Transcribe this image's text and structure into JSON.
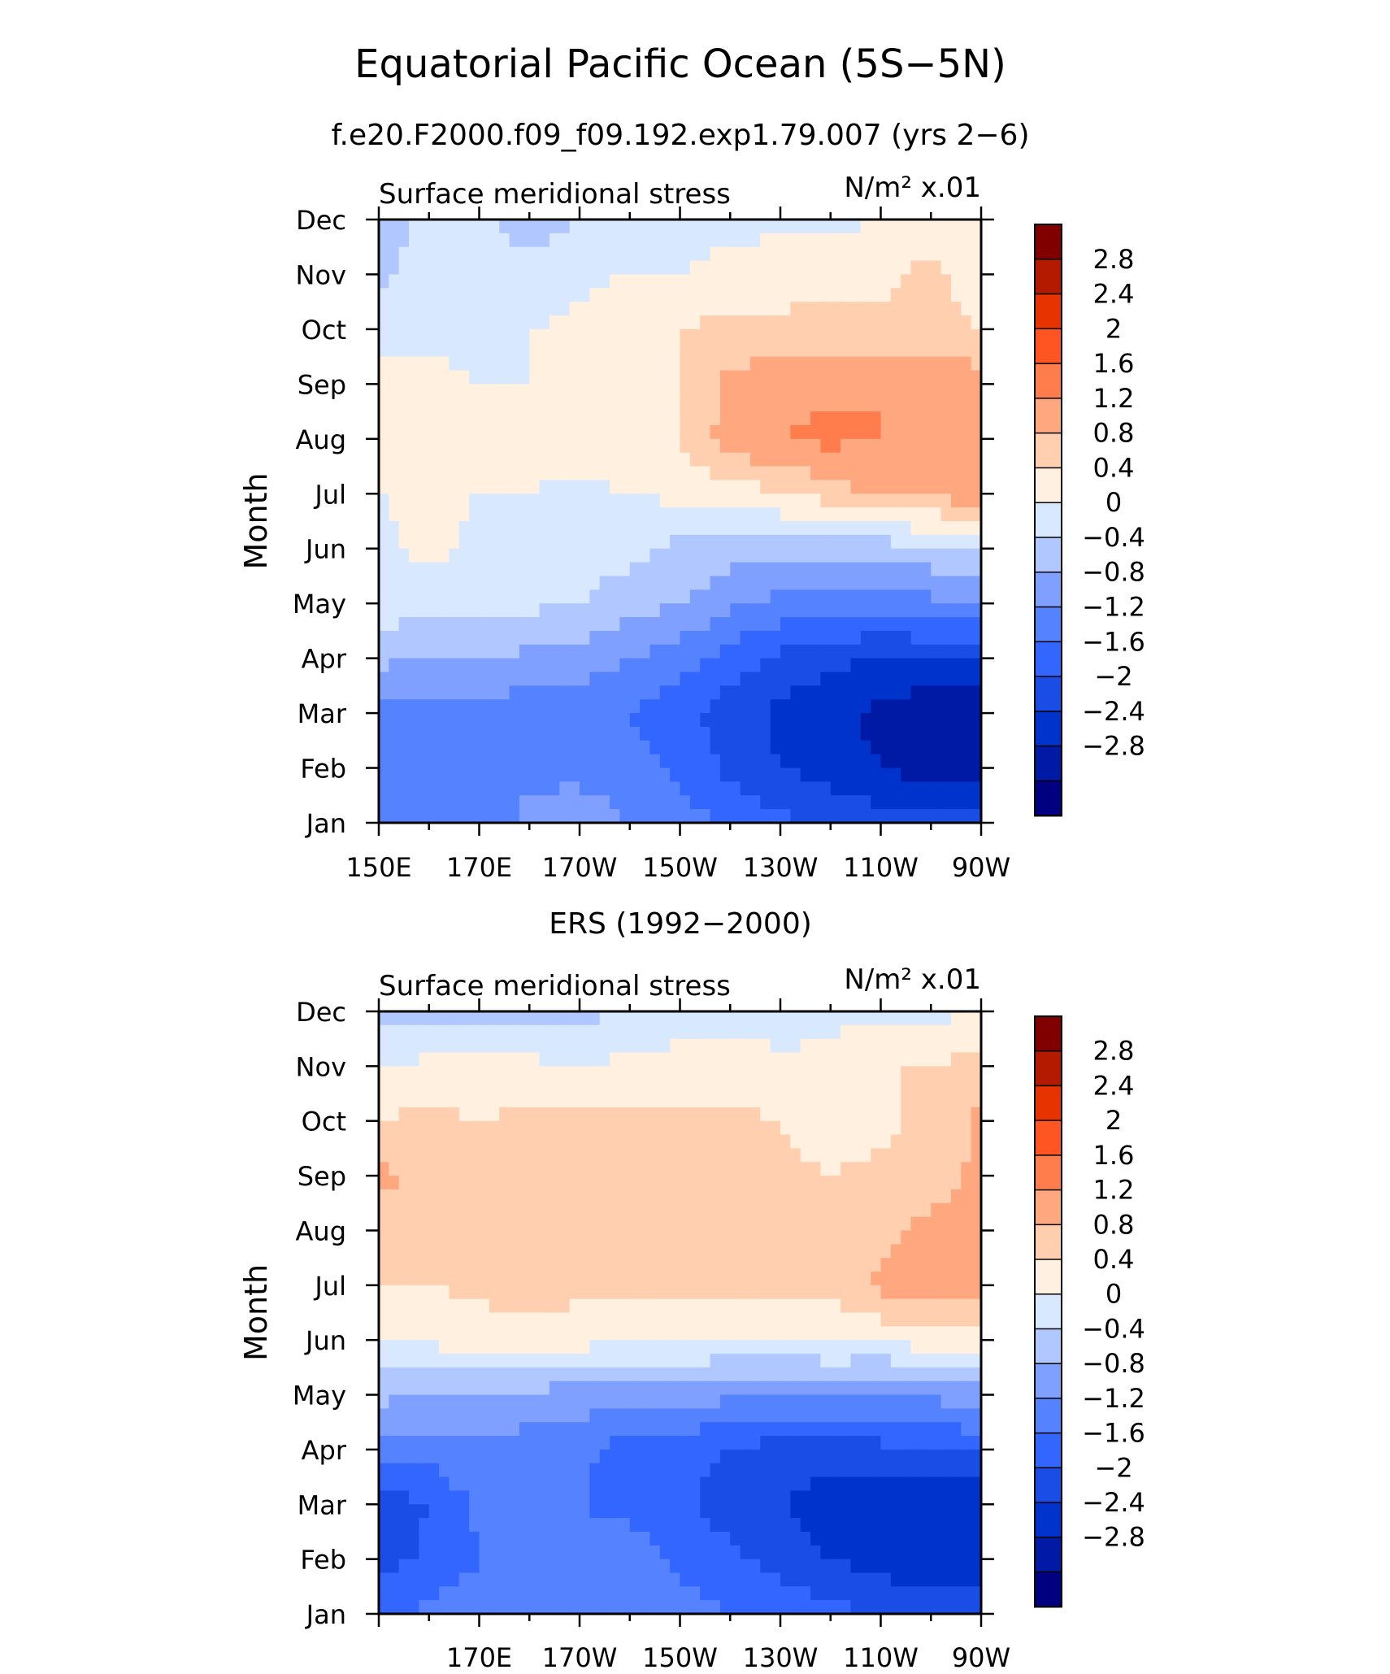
{
  "figure": {
    "title": "Equatorial Pacific Ocean (5S−5N)",
    "subtitle": "f.e20.F2000.f09_f09.192.exp1.79.007 (yrs 2−6)",
    "middle_title": "ERS (1992−2000)"
  },
  "colors": {
    "contour_fills": [
      "#000080",
      "#001aa6",
      "#0033cc",
      "#1a4de6",
      "#3366ff",
      "#5582ff",
      "#80a0ff",
      "#b0c8ff",
      "#d8e8ff",
      "#fff0e0",
      "#ffcfb0",
      "#ffa880",
      "#ff7d4d",
      "#ff5522",
      "#e63300",
      "#b31a00",
      "#800000"
    ]
  },
  "chart_data": [
    {
      "type": "heatmap",
      "name": "model",
      "title": "Surface meridional stress",
      "units": "N/m² x.01",
      "ylabel": "Month",
      "xlabel": "",
      "x_tick_labels": [
        "150E",
        "170E",
        "170W",
        "150W",
        "130W",
        "110W",
        "90W"
      ],
      "y_tick_labels": [
        "Jan",
        "Feb",
        "Mar",
        "Apr",
        "May",
        "Jun",
        "Jul",
        "Aug",
        "Sep",
        "Oct",
        "Nov",
        "Dec"
      ],
      "xlim": [
        150,
        270
      ],
      "ylim": [
        1,
        12
      ],
      "colorbar_levels": [
        -2.8,
        -2.4,
        -2,
        -1.6,
        -1.2,
        -0.8,
        -0.4,
        0,
        0.4,
        0.8,
        1.2,
        1.6,
        2,
        2.4,
        2.8
      ],
      "colorbar_labels": [
        "2.8",
        "2.4",
        "2",
        "1.6",
        "1.2",
        "0.8",
        "0.4",
        "0",
        "−0.4",
        "−0.8",
        "−1.2",
        "−1.6",
        "−2",
        "−2.4",
        "−2.8"
      ],
      "grid_lon": [
        150,
        160,
        170,
        180,
        190,
        200,
        210,
        220,
        230,
        240,
        250,
        260,
        270
      ],
      "values": [
        [
          -0.9,
          -1.0,
          -1.0,
          -0.7,
          -0.6,
          -0.8,
          -1.0,
          -1.3,
          -1.5,
          -1.7,
          -1.8,
          -1.8,
          -1.7
        ],
        [
          -1.1,
          -1.1,
          -1.0,
          -0.9,
          -0.9,
          -1.0,
          -1.3,
          -1.7,
          -2.0,
          -2.2,
          -2.4,
          -2.6,
          -2.7
        ],
        [
          -1.0,
          -1.0,
          -1.0,
          -1.0,
          -1.0,
          -1.2,
          -1.5,
          -1.8,
          -2.1,
          -2.3,
          -2.5,
          -2.7,
          -2.8
        ],
        [
          -0.3,
          -0.4,
          -0.4,
          -0.5,
          -0.6,
          -0.8,
          -1.0,
          -1.4,
          -1.7,
          -1.9,
          -2.0,
          -2.0,
          -1.9
        ],
        [
          0.2,
          0.2,
          0.1,
          0.1,
          0.0,
          -0.2,
          -0.4,
          -0.7,
          -0.9,
          -1.0,
          -1.0,
          -0.9,
          -0.8
        ],
        [
          0.3,
          0.5,
          0.3,
          0.2,
          0.2,
          0.1,
          -0.1,
          -0.2,
          -0.3,
          -0.3,
          -0.2,
          -0.1,
          0.0
        ],
        [
          0.4,
          0.5,
          0.4,
          0.4,
          0.3,
          0.4,
          0.5,
          0.6,
          0.8,
          1.0,
          1.3,
          1.3,
          1.5
        ],
        [
          0.8,
          0.5,
          0.5,
          0.5,
          0.6,
          0.7,
          0.8,
          1.4,
          1.6,
          1.7,
          1.6,
          1.6,
          1.4
        ],
        [
          0.5,
          0.5,
          0.4,
          0.4,
          0.5,
          0.7,
          0.8,
          1.3,
          1.5,
          1.5,
          1.6,
          1.5,
          1.4
        ],
        [
          0.3,
          0.3,
          0.3,
          0.4,
          0.5,
          0.7,
          0.8,
          0.9,
          0.9,
          1.0,
          0.9,
          0.9,
          0.8
        ],
        [
          -0.1,
          0.2,
          0.2,
          0.1,
          0.3,
          0.4,
          0.4,
          0.5,
          0.6,
          0.6,
          0.7,
          0.9,
          0.6
        ],
        [
          -0.2,
          0.1,
          0.1,
          -0.2,
          0.0,
          0.1,
          0.3,
          0.3,
          0.3,
          0.3,
          0.4,
          0.6,
          0.5
        ]
      ]
    },
    {
      "type": "heatmap",
      "name": "ERS",
      "title": "Surface meridional stress",
      "units": "N/m² x.01",
      "ylabel": "Month",
      "xlabel": "",
      "x_tick_labels": [
        "170E",
        "170W",
        "150W",
        "130W",
        "110W",
        "90W"
      ],
      "y_tick_labels": [
        "Jan",
        "Feb",
        "Mar",
        "Apr",
        "May",
        "Jun",
        "Jul",
        "Aug",
        "Sep",
        "Oct",
        "Nov",
        "Dec"
      ],
      "xlim": [
        150,
        270
      ],
      "ylim": [
        1,
        12
      ],
      "colorbar_levels": [
        -2.8,
        -2.4,
        -2,
        -1.6,
        -1.2,
        -0.8,
        -0.4,
        0,
        0.4,
        0.8,
        1.2,
        1.6,
        2,
        2.4,
        2.8
      ],
      "colorbar_labels": [
        "2.8",
        "2.4",
        "2",
        "1.6",
        "1.2",
        "0.8",
        "0.4",
        "0",
        "−0.4",
        "−0.8",
        "−1.2",
        "−1.6",
        "−2",
        "−2.4",
        "−2.8"
      ],
      "grid_lon": [
        150,
        160,
        170,
        180,
        190,
        200,
        210,
        220,
        230,
        240,
        250,
        260,
        270
      ],
      "values": [
        [
          -1.3,
          -1.1,
          -1.0,
          -0.8,
          -0.9,
          -0.8,
          -1.0,
          -1.2,
          -1.3,
          -1.5,
          -1.6,
          -1.8,
          -1.8
        ],
        [
          -1.8,
          -1.5,
          -1.2,
          -1.0,
          -1.1,
          -1.0,
          -1.3,
          -1.5,
          -1.8,
          -2.0,
          -2.2,
          -2.3,
          -2.3
        ],
        [
          -1.9,
          -1.6,
          -1.1,
          -1.0,
          -1.2,
          -1.3,
          -1.5,
          -1.8,
          -2.0,
          -2.2,
          -2.3,
          -2.4,
          -2.3
        ],
        [
          -0.9,
          -1.0,
          -0.9,
          -1.0,
          -1.1,
          -1.4,
          -1.5,
          -1.6,
          -1.8,
          -1.8,
          -1.7,
          -1.6,
          -1.5
        ],
        [
          -0.3,
          -0.4,
          -0.4,
          -0.5,
          -0.6,
          -0.6,
          -0.6,
          -0.7,
          -0.8,
          -0.8,
          -0.9,
          -0.7,
          -0.6
        ],
        [
          0.5,
          0.5,
          0.6,
          0.6,
          0.6,
          0.4,
          0.4,
          0.4,
          0.4,
          0.5,
          0.5,
          0.6,
          0.7
        ],
        [
          0.8,
          0.8,
          0.9,
          1.0,
          0.9,
          1.0,
          0.9,
          1.0,
          0.9,
          0.9,
          1.3,
          1.4,
          1.4
        ],
        [
          1.0,
          1.0,
          0.8,
          1.0,
          1.0,
          1.1,
          1.0,
          1.1,
          1.0,
          0.9,
          1.1,
          1.3,
          1.4
        ],
        [
          1.3,
          1.1,
          0.9,
          1.0,
          1.0,
          1.0,
          0.9,
          1.0,
          0.9,
          0.8,
          0.9,
          1.0,
          1.3
        ],
        [
          0.8,
          0.9,
          0.8,
          0.9,
          1.0,
          0.9,
          0.9,
          0.9,
          0.8,
          0.6,
          0.7,
          0.9,
          1.3
        ],
        [
          0.4,
          0.5,
          0.6,
          0.5,
          0.4,
          0.5,
          0.6,
          0.6,
          0.5,
          0.5,
          0.8,
          0.8,
          1.0
        ],
        [
          -0.2,
          -0.1,
          -0.2,
          -0.1,
          -0.1,
          0.0,
          0.1,
          0.2,
          0.2,
          0.3,
          0.3,
          0.3,
          0.4
        ]
      ]
    }
  ]
}
